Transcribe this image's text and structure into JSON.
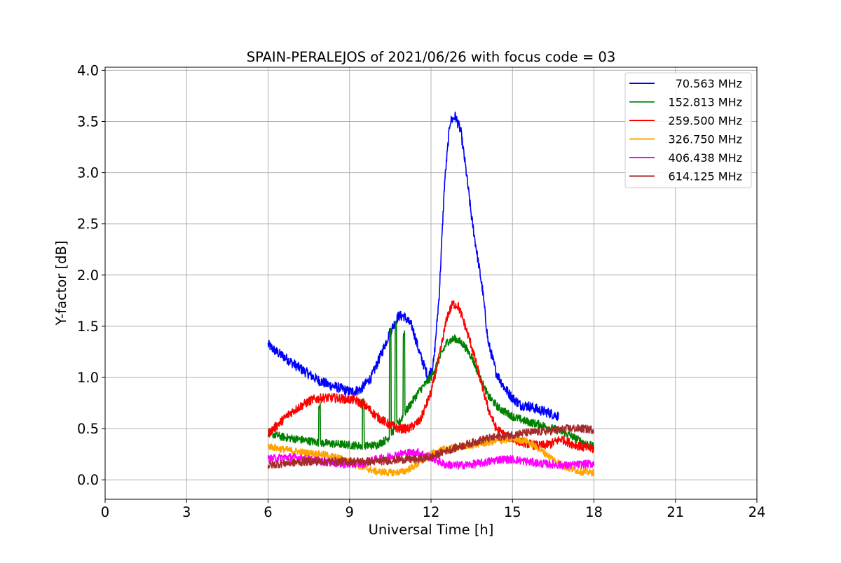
{
  "chart_data": {
    "type": "line",
    "title": "SPAIN-PERALEJOS of 2021/06/26 with focus code = 03",
    "xlabel": "Universal Time [h]",
    "ylabel": "Y-factor [dB]",
    "xlim": [
      0,
      24
    ],
    "ylim": [
      -0.19,
      4.03
    ],
    "xticks": [
      0,
      3,
      6,
      9,
      12,
      15,
      18,
      21,
      24
    ],
    "xtick_labels": [
      "0",
      "3",
      "6",
      "9",
      "12",
      "15",
      "18",
      "21",
      "24"
    ],
    "yticks": [
      0.0,
      0.5,
      1.0,
      1.5,
      2.0,
      2.5,
      3.0,
      3.5,
      4.0
    ],
    "ytick_labels": [
      "0.0",
      "0.5",
      "1.0",
      "1.5",
      "2.0",
      "2.5",
      "3.0",
      "3.5",
      "4.0"
    ],
    "grid": true,
    "legend_position": "top-right",
    "series": [
      {
        "name": "70.563 MHz",
        "color": "#0000ff",
        "noise": 0.05,
        "x": [
          6.0,
          6.3,
          6.6,
          7.0,
          7.4,
          7.8,
          8.2,
          8.6,
          9.0,
          9.4,
          9.8,
          10.2,
          10.5,
          10.8,
          11.0,
          11.3,
          11.6,
          11.9,
          12.1,
          12.3,
          12.5,
          12.7,
          12.9,
          13.1,
          13.3,
          13.5,
          13.7,
          13.9,
          14.1,
          14.4,
          14.7,
          15.0,
          15.3,
          15.6,
          16.0,
          16.4,
          16.7
        ],
        "y": [
          1.32,
          1.25,
          1.2,
          1.12,
          1.05,
          0.98,
          0.93,
          0.9,
          0.86,
          0.88,
          1.0,
          1.25,
          1.45,
          1.6,
          1.6,
          1.5,
          1.22,
          1.0,
          1.15,
          1.8,
          2.9,
          3.5,
          3.55,
          3.4,
          3.0,
          2.55,
          2.2,
          1.85,
          1.35,
          1.05,
          0.9,
          0.8,
          0.73,
          0.72,
          0.68,
          0.65,
          0.62
        ]
      },
      {
        "name": "152.813 MHz",
        "color": "#008000",
        "noise": 0.04,
        "x": [
          6.0,
          6.5,
          7.0,
          7.5,
          8.0,
          8.5,
          9.0,
          9.5,
          10.0,
          10.4,
          10.8,
          11.2,
          11.6,
          12.0,
          12.3,
          12.6,
          12.9,
          13.2,
          13.5,
          13.8,
          14.1,
          14.5,
          15.0,
          15.5,
          16.0,
          16.5,
          17.0,
          17.5,
          18.0
        ],
        "y": [
          0.46,
          0.42,
          0.4,
          0.38,
          0.36,
          0.35,
          0.34,
          0.33,
          0.34,
          0.4,
          0.55,
          0.72,
          0.88,
          1.0,
          1.18,
          1.35,
          1.38,
          1.32,
          1.2,
          1.0,
          0.82,
          0.7,
          0.62,
          0.57,
          0.54,
          0.5,
          0.45,
          0.38,
          0.32
        ],
        "spikes": [
          [
            7.9,
            0.75
          ],
          [
            9.5,
            0.8
          ],
          [
            10.5,
            1.5
          ],
          [
            10.7,
            1.55
          ],
          [
            11.0,
            1.5
          ]
        ]
      },
      {
        "name": "259.500 MHz",
        "color": "#ff0000",
        "noise": 0.045,
        "x": [
          6.0,
          6.4,
          6.8,
          7.2,
          7.6,
          8.0,
          8.4,
          8.8,
          9.2,
          9.6,
          10.0,
          10.4,
          10.8,
          11.2,
          11.6,
          12.0,
          12.3,
          12.6,
          12.8,
          13.0,
          13.2,
          13.5,
          13.8,
          14.1,
          14.4,
          14.8,
          15.2,
          15.6,
          16.0,
          16.4,
          16.8,
          17.2,
          17.6,
          18.0
        ],
        "y": [
          0.45,
          0.55,
          0.65,
          0.72,
          0.78,
          0.8,
          0.8,
          0.79,
          0.78,
          0.72,
          0.62,
          0.55,
          0.5,
          0.5,
          0.58,
          0.85,
          1.2,
          1.6,
          1.72,
          1.7,
          1.55,
          1.3,
          1.0,
          0.7,
          0.5,
          0.42,
          0.38,
          0.35,
          0.33,
          0.35,
          0.4,
          0.35,
          0.32,
          0.3
        ]
      },
      {
        "name": "326.750 MHz",
        "color": "#ffa500",
        "noise": 0.035,
        "x": [
          6.0,
          6.5,
          7.0,
          7.5,
          8.0,
          8.5,
          9.0,
          9.5,
          10.0,
          10.5,
          11.0,
          11.5,
          12.0,
          12.5,
          13.0,
          13.5,
          14.0,
          14.5,
          15.0,
          15.5,
          16.0,
          16.5,
          17.0,
          17.5,
          18.0
        ],
        "y": [
          0.33,
          0.3,
          0.28,
          0.26,
          0.25,
          0.22,
          0.18,
          0.12,
          0.08,
          0.07,
          0.08,
          0.15,
          0.25,
          0.3,
          0.32,
          0.34,
          0.36,
          0.38,
          0.4,
          0.38,
          0.3,
          0.2,
          0.12,
          0.08,
          0.07
        ]
      },
      {
        "name": "406.438 MHz",
        "color": "#ff00ff",
        "noise": 0.04,
        "x": [
          6.0,
          6.5,
          7.0,
          7.5,
          8.0,
          8.5,
          9.0,
          9.5,
          10.0,
          10.5,
          11.0,
          11.5,
          12.0,
          12.5,
          13.0,
          13.5,
          14.0,
          14.5,
          15.0,
          15.5,
          16.0,
          16.5,
          17.0,
          17.5,
          18.0
        ],
        "y": [
          0.2,
          0.22,
          0.22,
          0.2,
          0.18,
          0.16,
          0.15,
          0.16,
          0.2,
          0.23,
          0.26,
          0.27,
          0.22,
          0.15,
          0.14,
          0.15,
          0.17,
          0.2,
          0.2,
          0.18,
          0.16,
          0.15,
          0.14,
          0.15,
          0.16
        ]
      },
      {
        "name": "614.125 MHz",
        "color": "#a52a2a",
        "noise": 0.04,
        "x": [
          6.0,
          6.5,
          7.0,
          7.5,
          8.0,
          8.5,
          9.0,
          9.5,
          10.0,
          10.5,
          11.0,
          11.5,
          12.0,
          12.5,
          13.0,
          13.5,
          14.0,
          14.5,
          15.0,
          15.5,
          16.0,
          16.5,
          17.0,
          17.5,
          18.0
        ],
        "y": [
          0.14,
          0.16,
          0.17,
          0.18,
          0.18,
          0.18,
          0.18,
          0.18,
          0.18,
          0.19,
          0.2,
          0.2,
          0.22,
          0.28,
          0.32,
          0.36,
          0.4,
          0.42,
          0.44,
          0.46,
          0.47,
          0.48,
          0.5,
          0.5,
          0.49
        ]
      }
    ]
  }
}
